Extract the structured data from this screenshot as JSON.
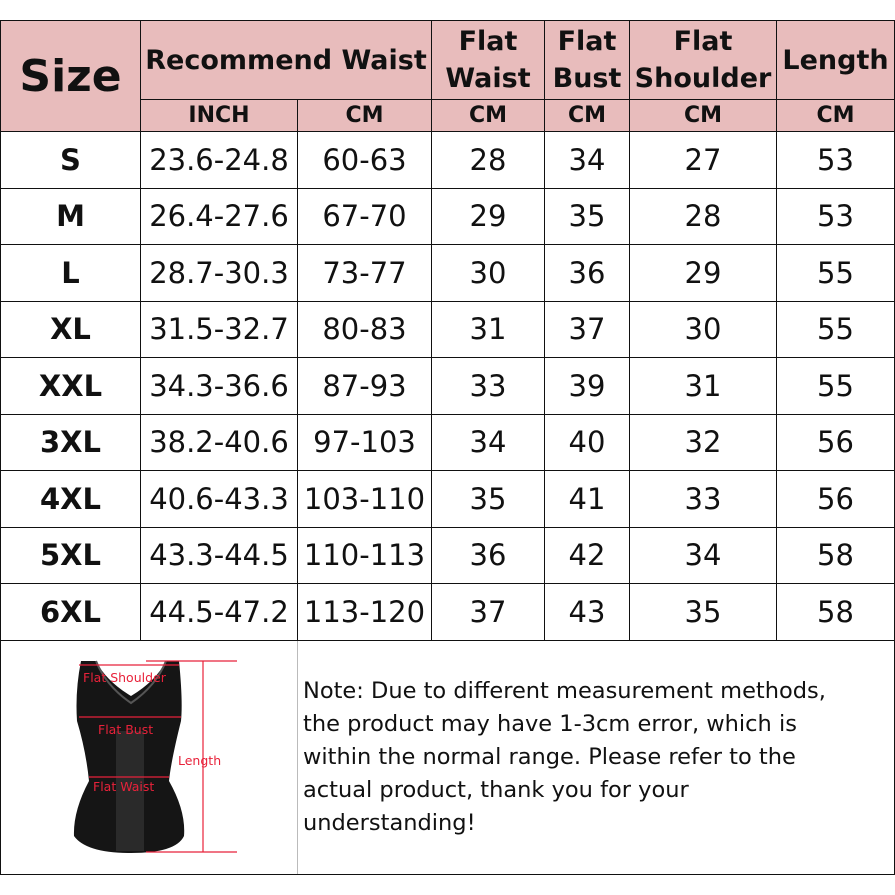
{
  "headers": {
    "size": "Size",
    "recommend_waist": "Recommend Waist",
    "flat_waist": "Flat Waist",
    "flat_bust": "Flat Bust",
    "flat_shoulder": "Flat Shoulder",
    "length": "Length",
    "units": [
      "INCH",
      "CM",
      "CM",
      "CM",
      "CM",
      "CM"
    ]
  },
  "rows": [
    [
      "S",
      "23.6-24.8",
      "60-63",
      "28",
      "34",
      "27",
      "53"
    ],
    [
      "M",
      "26.4-27.6",
      "67-70",
      "29",
      "35",
      "28",
      "53"
    ],
    [
      "L",
      "28.7-30.3",
      "73-77",
      "30",
      "36",
      "29",
      "55"
    ],
    [
      "XL",
      "31.5-32.7",
      "80-83",
      "31",
      "37",
      "30",
      "55"
    ],
    [
      "XXL",
      "34.3-36.6",
      "87-93",
      "33",
      "39",
      "31",
      "55"
    ],
    [
      "3XL",
      "38.2-40.6",
      "97-103",
      "34",
      "40",
      "32",
      "56"
    ],
    [
      "4XL",
      "40.6-43.3",
      "103-110",
      "35",
      "41",
      "33",
      "56"
    ],
    [
      "5XL",
      "43.3-44.5",
      "110-113",
      "36",
      "42",
      "34",
      "58"
    ],
    [
      "6XL",
      "44.5-47.2",
      "113-120",
      "37",
      "43",
      "35",
      "58"
    ]
  ],
  "figure": {
    "labels": {
      "shoulder": "Flat Shoulder",
      "bust": "Flat Bust",
      "waist": "Flat Waist",
      "length": "Length"
    },
    "accent": "#e8223a"
  },
  "note": "Note: Due to different measurement methods, the product may have 1-3cm error, which is within the normal range. Please refer to the actual product, thank you for your understanding!",
  "colors": {
    "header_bg": "#e8bcbc"
  }
}
